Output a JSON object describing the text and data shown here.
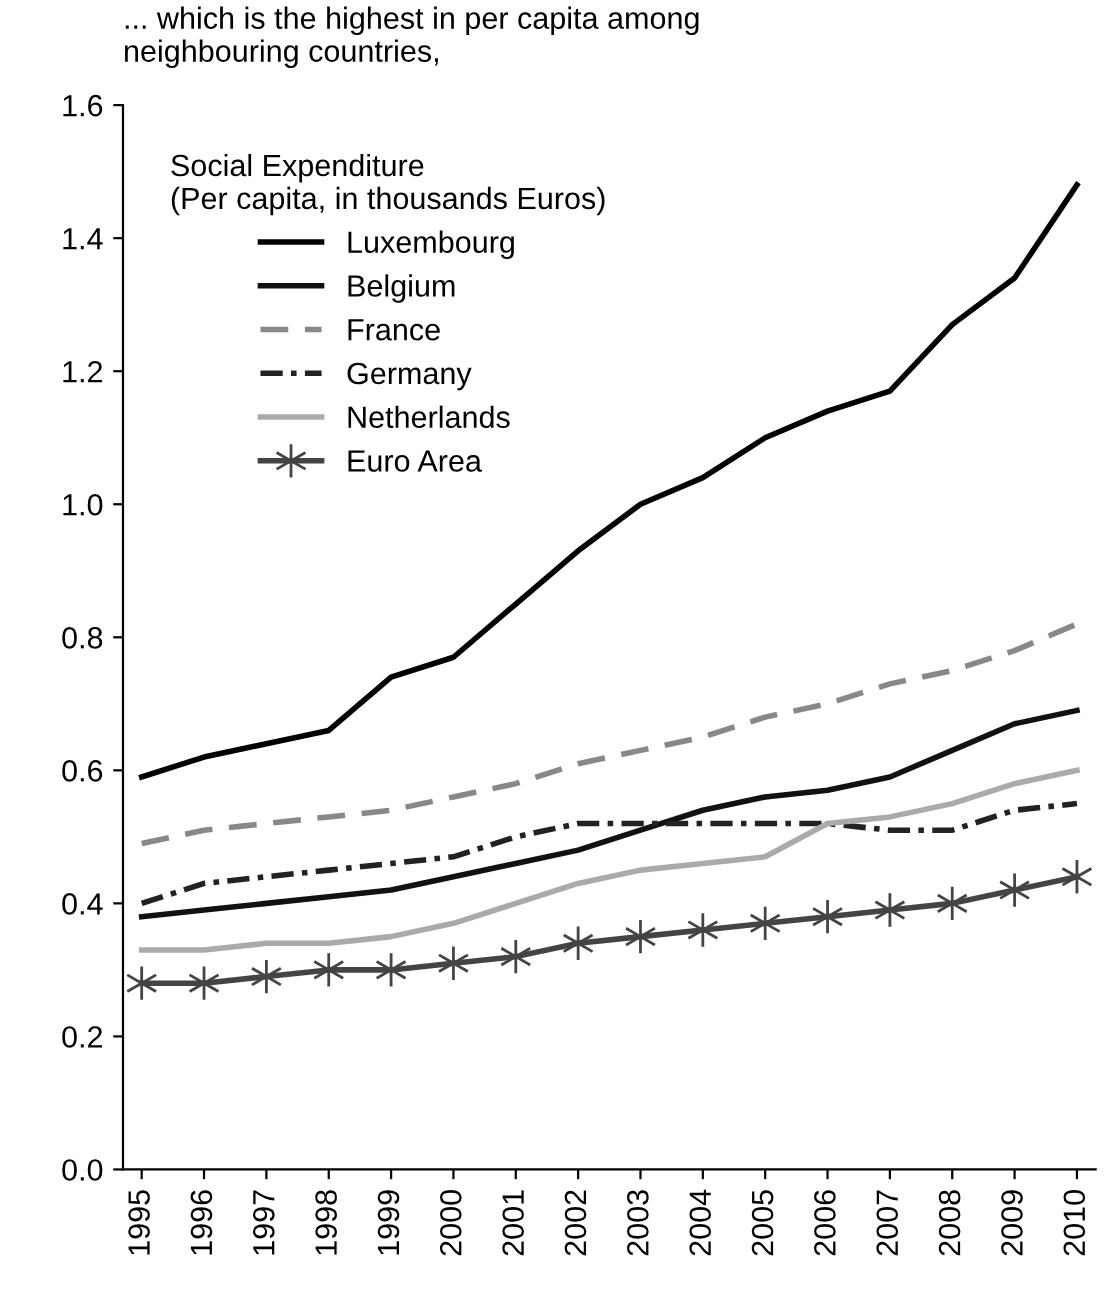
{
  "chart_data": {
    "type": "line",
    "title": "... which is the highest in per capita among\nneighbouring countries,",
    "legend_title": "Social Expenditure\n(Per capita, in thousands Euros)",
    "categories": [
      "1995",
      "1996",
      "1997",
      "1998",
      "1999",
      "2000",
      "2001",
      "2002",
      "2003",
      "2004",
      "2005",
      "2006",
      "2007",
      "2008",
      "2009",
      "2010"
    ],
    "series": [
      {
        "name": "Luxembourg",
        "color": "#000000",
        "line_style": "solid",
        "values": [
          0.59,
          0.62,
          0.64,
          0.66,
          0.74,
          0.77,
          0.85,
          0.93,
          1.0,
          1.04,
          1.1,
          1.14,
          1.17,
          1.27,
          1.34,
          1.48
        ]
      },
      {
        "name": "Belgium",
        "color": "#111111",
        "line_style": "solid",
        "values": [
          0.38,
          0.39,
          0.4,
          0.41,
          0.42,
          0.44,
          0.46,
          0.48,
          0.51,
          0.54,
          0.56,
          0.57,
          0.59,
          0.63,
          0.67,
          0.69
        ]
      },
      {
        "name": "France",
        "color": "#888888",
        "line_style": "dashed",
        "values": [
          0.49,
          0.51,
          0.52,
          0.53,
          0.54,
          0.56,
          0.58,
          0.61,
          0.63,
          0.65,
          0.68,
          0.7,
          0.73,
          0.75,
          0.78,
          0.82
        ]
      },
      {
        "name": "Germany",
        "color": "#222222",
        "line_style": "dashdot",
        "values": [
          0.4,
          0.43,
          0.44,
          0.45,
          0.46,
          0.47,
          0.5,
          0.52,
          0.52,
          0.52,
          0.52,
          0.52,
          0.51,
          0.51,
          0.54,
          0.55
        ]
      },
      {
        "name": "Netherlands",
        "color": "#aaaaaa",
        "line_style": "solid",
        "values": [
          0.33,
          0.33,
          0.34,
          0.34,
          0.35,
          0.37,
          0.4,
          0.43,
          0.45,
          0.46,
          0.47,
          0.52,
          0.53,
          0.55,
          0.58,
          0.6
        ]
      },
      {
        "name": "Euro Area",
        "color": "#444444",
        "line_style": "solid",
        "marker": "cross",
        "values": [
          0.28,
          0.28,
          0.29,
          0.3,
          0.3,
          0.31,
          0.32,
          0.34,
          0.35,
          0.36,
          0.37,
          0.38,
          0.39,
          0.4,
          0.42,
          0.44
        ]
      }
    ],
    "ylim": [
      0,
      1.6
    ],
    "yticks": [
      {
        "value": 0,
        "label": "0.0"
      },
      {
        "value": 0.2,
        "label": "0.2"
      },
      {
        "value": 0.4,
        "label": "0.4"
      },
      {
        "value": 0.6,
        "label": "0.6"
      },
      {
        "value": 0.8,
        "label": "0.8"
      },
      {
        "value": 1.0,
        "label": "1.0"
      },
      {
        "value": 1.2,
        "label": "1.2"
      },
      {
        "value": 1.4,
        "label": "1.4"
      },
      {
        "value": 1.6,
        "label": "1.6"
      }
    ],
    "grid": false,
    "legend": "top left"
  }
}
